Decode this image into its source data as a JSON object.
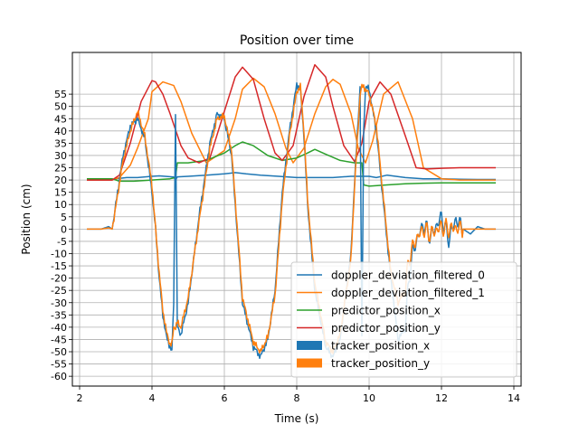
{
  "chart_data": {
    "type": "line",
    "title": "Position over time",
    "xlabel": "Time (s)",
    "ylabel": "Position (cm)",
    "xlim": [
      1.8,
      14.2
    ],
    "ylim": [
      -64,
      72
    ],
    "x_ticks": [
      2,
      4,
      6,
      8,
      10,
      12,
      14
    ],
    "y_ticks": [
      -60,
      -55,
      -50,
      -45,
      -40,
      -35,
      -30,
      -25,
      -20,
      -15,
      -10,
      -5,
      0,
      5,
      10,
      15,
      20,
      25,
      30,
      35,
      40,
      45,
      50,
      55
    ],
    "grid": true,
    "legend_position": "lower-right",
    "series": [
      {
        "name": "doppler_deviation_filtered_0",
        "color": "#1f77b4",
        "style": "line",
        "x": [
          2.2,
          2.9,
          3.0,
          3.3,
          3.6,
          4.0,
          4.2,
          4.6,
          4.65,
          4.7,
          5.0,
          5.5,
          6.0,
          6.3,
          6.6,
          7.0,
          7.5,
          8.0,
          8.5,
          9.0,
          9.5,
          10.0,
          10.2,
          10.5,
          11.0,
          11.5,
          12.0,
          12.5,
          13.0,
          13.5
        ],
        "y": [
          20.0,
          20.0,
          20.5,
          21.0,
          21.0,
          21.5,
          21.7,
          21.2,
          20.0,
          21.3,
          21.5,
          22.0,
          22.5,
          23.0,
          22.5,
          22.0,
          21.5,
          21.0,
          21.0,
          21.0,
          21.5,
          21.5,
          21.0,
          22.0,
          21.0,
          20.5,
          20.5,
          20.3,
          20.2,
          20.2
        ]
      },
      {
        "name": "doppler_deviation_filtered_1",
        "color": "#ff7f0e",
        "style": "line",
        "x": [
          2.2,
          2.9,
          3.1,
          3.4,
          3.6,
          3.9,
          4.0,
          4.3,
          4.6,
          4.8,
          5.1,
          5.5,
          6.0,
          6.3,
          6.5,
          6.8,
          7.1,
          7.4,
          7.7,
          7.9,
          8.2,
          8.5,
          8.8,
          9.0,
          9.2,
          9.5,
          9.7,
          9.9,
          10.1,
          10.4,
          10.8,
          11.2,
          11.5,
          12.0,
          12.5,
          13.0,
          13.5
        ],
        "y": [
          20.0,
          20.0,
          21.0,
          26.0,
          33.0,
          45.0,
          56.0,
          60.0,
          58.5,
          52.0,
          39.0,
          27.0,
          32.0,
          45.0,
          57.0,
          61.5,
          58.0,
          47.0,
          33.0,
          27.0,
          33.0,
          47.0,
          58.0,
          61.0,
          59.0,
          47.0,
          33.0,
          27.0,
          36.0,
          55.0,
          60.0,
          45.0,
          25.0,
          20.5,
          20.0,
          20.0,
          20.0
        ]
      },
      {
        "name": "predictor_position_x",
        "color": "#2ca02c",
        "style": "line",
        "x": [
          2.2,
          2.9,
          3.1,
          3.5,
          4.0,
          4.5,
          4.65,
          4.7,
          5.0,
          5.5,
          6.0,
          6.3,
          6.5,
          6.8,
          7.2,
          7.6,
          8.0,
          8.3,
          8.5,
          8.8,
          9.2,
          9.6,
          9.8,
          9.85,
          10.0,
          10.5,
          11.0,
          11.5,
          12.0,
          13.0,
          13.5
        ],
        "y": [
          20.5,
          20.5,
          19.5,
          19.5,
          20.0,
          20.5,
          21.0,
          27.0,
          27.0,
          28.0,
          31.0,
          34.0,
          35.5,
          34.0,
          30.0,
          28.0,
          29.0,
          31.0,
          32.5,
          30.5,
          28.0,
          27.0,
          27.0,
          18.0,
          17.5,
          18.0,
          18.5,
          18.7,
          18.8,
          18.8,
          18.8
        ]
      },
      {
        "name": "predictor_position_y",
        "color": "#d62728",
        "style": "line",
        "x": [
          2.2,
          2.9,
          3.1,
          3.4,
          3.7,
          4.0,
          4.1,
          4.3,
          4.5,
          4.8,
          5.0,
          5.3,
          5.6,
          6.0,
          6.3,
          6.5,
          6.8,
          7.1,
          7.4,
          7.6,
          7.9,
          8.2,
          8.5,
          8.8,
          9.0,
          9.3,
          9.6,
          9.8,
          10.0,
          10.3,
          10.6,
          11.0,
          11.3,
          11.6,
          12.0,
          12.5,
          13.0,
          13.5
        ],
        "y": [
          20.0,
          20.0,
          22.0,
          35.0,
          52.0,
          60.5,
          60.0,
          55.0,
          47.0,
          34.0,
          29.0,
          27.0,
          29.0,
          48.0,
          62.0,
          66.0,
          61.0,
          45.0,
          31.0,
          28.0,
          34.0,
          54.0,
          67.0,
          62.0,
          50.0,
          34.0,
          27.5,
          35.0,
          52.0,
          60.0,
          55.0,
          38.0,
          25.0,
          24.5,
          24.8,
          25.0,
          25.0,
          25.0
        ]
      },
      {
        "name": "tracker_position_x",
        "color": "#1f77b4",
        "style": "noisy",
        "x": [
          2.2,
          2.6,
          2.8,
          2.9,
          3.0,
          3.2,
          3.4,
          3.6,
          3.8,
          4.0,
          4.1,
          4.2,
          4.3,
          4.4,
          4.5,
          4.55,
          4.6,
          4.65,
          4.7,
          4.8,
          5.0,
          5.3,
          5.6,
          5.8,
          6.0,
          6.2,
          6.3,
          6.5,
          6.8,
          7.0,
          7.2,
          7.4,
          7.5,
          7.6,
          7.8,
          8.0,
          8.1,
          8.2,
          8.3,
          8.5,
          8.8,
          9.0,
          9.2,
          9.5,
          9.6,
          9.7,
          9.75,
          9.8,
          9.85,
          9.9,
          10.0,
          10.2,
          10.4,
          10.6,
          10.8,
          11.0,
          11.1,
          11.2,
          11.3,
          11.5,
          11.7,
          12.0,
          12.2,
          12.4,
          12.6,
          12.8,
          13.0,
          13.2,
          13.5
        ],
        "y": [
          0.0,
          0.0,
          1.0,
          0.0,
          10.0,
          30.0,
          42.0,
          45.0,
          37.0,
          15.0,
          0.0,
          -20.0,
          -35.0,
          -44.0,
          -48.0,
          -50.0,
          -30.0,
          48.0,
          -40.0,
          -43.0,
          -30.0,
          5.0,
          35.0,
          47.0,
          45.0,
          30.0,
          10.0,
          -30.0,
          -48.0,
          -52.0,
          -45.0,
          -25.0,
          -5.0,
          15.0,
          40.0,
          59.0,
          57.0,
          38.0,
          10.0,
          -25.0,
          -48.0,
          -52.0,
          -45.0,
          -10.0,
          20.0,
          45.0,
          58.0,
          -45.0,
          40.0,
          58.0,
          57.0,
          40.0,
          10.0,
          -20.0,
          -45.0,
          -40.0,
          -20.0,
          -10.0,
          -5.0,
          2.0,
          -3.0,
          5.0,
          -4.0,
          4.0,
          0.0,
          -2.0,
          1.0,
          0.0,
          0.0
        ]
      },
      {
        "name": "tracker_position_y",
        "color": "#ff7f0e",
        "style": "noisy",
        "x": [
          2.2,
          2.6,
          2.8,
          2.9,
          3.0,
          3.2,
          3.4,
          3.6,
          3.8,
          4.0,
          4.1,
          4.2,
          4.3,
          4.4,
          4.5,
          4.55,
          4.6,
          4.65,
          4.7,
          4.8,
          5.0,
          5.3,
          5.6,
          5.8,
          6.0,
          6.2,
          6.3,
          6.5,
          6.8,
          7.0,
          7.2,
          7.4,
          7.5,
          7.6,
          7.8,
          8.0,
          8.1,
          8.2,
          8.3,
          8.5,
          8.8,
          9.0,
          9.2,
          9.5,
          9.6,
          9.7,
          9.75,
          9.8,
          9.85,
          9.9,
          10.0,
          10.2,
          10.4,
          10.6,
          10.8,
          11.0,
          11.1,
          11.2,
          11.3,
          11.5,
          11.7,
          12.0,
          12.2,
          12.4,
          12.6,
          12.8,
          13.0,
          13.2,
          13.5
        ],
        "y": [
          0.0,
          0.0,
          0.5,
          0.0,
          9.0,
          28.0,
          40.0,
          48.0,
          38.0,
          18.0,
          0.0,
          -18.0,
          -33.0,
          -42.0,
          -47.0,
          -47.0,
          -40.0,
          -40.0,
          -38.0,
          -40.0,
          -28.0,
          3.0,
          33.0,
          45.0,
          46.0,
          32.0,
          12.0,
          -28.0,
          -46.0,
          -50.0,
          -44.0,
          -27.0,
          -8.0,
          12.0,
          38.0,
          56.0,
          58.0,
          40.0,
          12.0,
          -22.0,
          -46.0,
          -50.0,
          -43.0,
          -12.0,
          18.0,
          42.0,
          55.0,
          58.0,
          58.0,
          57.0,
          55.0,
          42.0,
          12.0,
          -18.0,
          -30.0,
          -25.0,
          -12.0,
          -8.0,
          -4.0,
          0.0,
          -2.0,
          1.0,
          0.0,
          0.5,
          0.0,
          0.0,
          0.0,
          0.0,
          0.0
        ]
      }
    ]
  }
}
